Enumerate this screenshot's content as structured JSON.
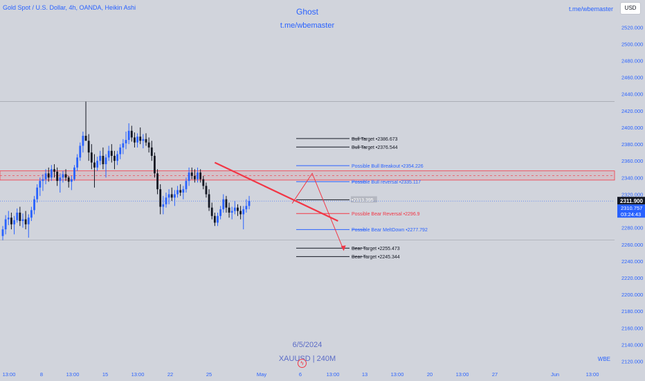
{
  "header": {
    "symbol": "Gold Spot / U.S. Dollar, 4h, OANDA, Heikin Ashi",
    "watermark_title": "Ghost",
    "watermark_sub": "t.me/wbemaster",
    "telegram": "t.me/wbemaster",
    "currency_button": "USD",
    "date_watermark": "6/5/2024",
    "symbol_watermark": "XAUUSD | 240M",
    "corner_tag": "WBE"
  },
  "colors": {
    "background": "#d1d4dc",
    "bull": "#2962ff",
    "bear": "#131722",
    "red": "#f23645",
    "axis_text": "#2962ff"
  },
  "chart_data": {
    "type": "candlestick",
    "ylim": [
      2113,
      2536
    ],
    "y_ticks": [
      2120,
      2140,
      2160,
      2180,
      2200,
      2220,
      2240,
      2260,
      2280,
      2300,
      2320,
      2340,
      2360,
      2380,
      2400,
      2420,
      2440,
      2460,
      2480,
      2500,
      2520
    ],
    "x_ticks": [
      "13:00",
      "8",
      "13:00",
      "15",
      "13:00",
      "22",
      "25",
      "May",
      "6",
      "13:00",
      "13",
      "13:00",
      "20",
      "13:00",
      "27",
      "Jun",
      "13:00"
    ],
    "last_price": "2311.900",
    "last_price_alt": "2310.757",
    "countdown": "03:24:43",
    "current_price": 2311.9,
    "candles": [
      {
        "o": 2270,
        "h": 2282,
        "l": 2265,
        "c": 2278
      },
      {
        "o": 2278,
        "h": 2295,
        "l": 2272,
        "c": 2290
      },
      {
        "o": 2290,
        "h": 2300,
        "l": 2283,
        "c": 2292
      },
      {
        "o": 2292,
        "h": 2298,
        "l": 2278,
        "c": 2284
      },
      {
        "o": 2284,
        "h": 2294,
        "l": 2272,
        "c": 2289
      },
      {
        "o": 2289,
        "h": 2303,
        "l": 2286,
        "c": 2298
      },
      {
        "o": 2298,
        "h": 2305,
        "l": 2282,
        "c": 2288
      },
      {
        "o": 2288,
        "h": 2297,
        "l": 2280,
        "c": 2290
      },
      {
        "o": 2290,
        "h": 2300,
        "l": 2278,
        "c": 2284
      },
      {
        "o": 2284,
        "h": 2296,
        "l": 2268,
        "c": 2292
      },
      {
        "o": 2292,
        "h": 2305,
        "l": 2288,
        "c": 2301
      },
      {
        "o": 2301,
        "h": 2318,
        "l": 2296,
        "c": 2314
      },
      {
        "o": 2314,
        "h": 2332,
        "l": 2310,
        "c": 2328
      },
      {
        "o": 2328,
        "h": 2340,
        "l": 2318,
        "c": 2336
      },
      {
        "o": 2336,
        "h": 2344,
        "l": 2324,
        "c": 2338
      },
      {
        "o": 2338,
        "h": 2350,
        "l": 2332,
        "c": 2345
      },
      {
        "o": 2345,
        "h": 2352,
        "l": 2335,
        "c": 2340
      },
      {
        "o": 2340,
        "h": 2355,
        "l": 2336,
        "c": 2350
      },
      {
        "o": 2350,
        "h": 2356,
        "l": 2340,
        "c": 2347
      },
      {
        "o": 2347,
        "h": 2352,
        "l": 2330,
        "c": 2336
      },
      {
        "o": 2336,
        "h": 2345,
        "l": 2322,
        "c": 2340
      },
      {
        "o": 2340,
        "h": 2348,
        "l": 2334,
        "c": 2344
      },
      {
        "o": 2344,
        "h": 2350,
        "l": 2336,
        "c": 2340
      },
      {
        "o": 2340,
        "h": 2342,
        "l": 2328,
        "c": 2335
      },
      {
        "o": 2335,
        "h": 2342,
        "l": 2325,
        "c": 2338
      },
      {
        "o": 2338,
        "h": 2355,
        "l": 2336,
        "c": 2352
      },
      {
        "o": 2352,
        "h": 2368,
        "l": 2348,
        "c": 2364
      },
      {
        "o": 2364,
        "h": 2382,
        "l": 2360,
        "c": 2378
      },
      {
        "o": 2378,
        "h": 2395,
        "l": 2370,
        "c": 2390
      },
      {
        "o": 2390,
        "h": 2431,
        "l": 2385,
        "c": 2384
      },
      {
        "o": 2384,
        "h": 2392,
        "l": 2360,
        "c": 2370
      },
      {
        "o": 2370,
        "h": 2380,
        "l": 2350,
        "c": 2358
      },
      {
        "o": 2358,
        "h": 2368,
        "l": 2328,
        "c": 2352
      },
      {
        "o": 2352,
        "h": 2365,
        "l": 2348,
        "c": 2360
      },
      {
        "o": 2360,
        "h": 2372,
        "l": 2355,
        "c": 2366
      },
      {
        "o": 2366,
        "h": 2376,
        "l": 2350,
        "c": 2356
      },
      {
        "o": 2356,
        "h": 2368,
        "l": 2340,
        "c": 2364
      },
      {
        "o": 2364,
        "h": 2378,
        "l": 2360,
        "c": 2372
      },
      {
        "o": 2372,
        "h": 2380,
        "l": 2358,
        "c": 2366
      },
      {
        "o": 2366,
        "h": 2372,
        "l": 2350,
        "c": 2360
      },
      {
        "o": 2360,
        "h": 2372,
        "l": 2355,
        "c": 2368
      },
      {
        "o": 2368,
        "h": 2380,
        "l": 2362,
        "c": 2376
      },
      {
        "o": 2376,
        "h": 2386,
        "l": 2368,
        "c": 2381
      },
      {
        "o": 2381,
        "h": 2395,
        "l": 2374,
        "c": 2385
      },
      {
        "o": 2385,
        "h": 2405,
        "l": 2380,
        "c": 2396
      },
      {
        "o": 2396,
        "h": 2402,
        "l": 2383,
        "c": 2388
      },
      {
        "o": 2388,
        "h": 2394,
        "l": 2376,
        "c": 2382
      },
      {
        "o": 2382,
        "h": 2393,
        "l": 2376,
        "c": 2389
      },
      {
        "o": 2389,
        "h": 2400,
        "l": 2380,
        "c": 2384
      },
      {
        "o": 2384,
        "h": 2392,
        "l": 2375,
        "c": 2386
      },
      {
        "o": 2386,
        "h": 2393,
        "l": 2378,
        "c": 2382
      },
      {
        "o": 2382,
        "h": 2388,
        "l": 2370,
        "c": 2376
      },
      {
        "o": 2376,
        "h": 2384,
        "l": 2360,
        "c": 2366
      },
      {
        "o": 2366,
        "h": 2370,
        "l": 2340,
        "c": 2345
      },
      {
        "o": 2345,
        "h": 2350,
        "l": 2320,
        "c": 2326
      },
      {
        "o": 2326,
        "h": 2332,
        "l": 2296,
        "c": 2305
      },
      {
        "o": 2305,
        "h": 2318,
        "l": 2296,
        "c": 2308
      },
      {
        "o": 2308,
        "h": 2322,
        "l": 2304,
        "c": 2316
      },
      {
        "o": 2316,
        "h": 2326,
        "l": 2308,
        "c": 2320
      },
      {
        "o": 2320,
        "h": 2328,
        "l": 2312,
        "c": 2316
      },
      {
        "o": 2316,
        "h": 2325,
        "l": 2306,
        "c": 2320
      },
      {
        "o": 2320,
        "h": 2330,
        "l": 2316,
        "c": 2325
      },
      {
        "o": 2325,
        "h": 2332,
        "l": 2318,
        "c": 2322
      },
      {
        "o": 2322,
        "h": 2330,
        "l": 2314,
        "c": 2326
      },
      {
        "o": 2326,
        "h": 2340,
        "l": 2322,
        "c": 2336
      },
      {
        "o": 2336,
        "h": 2352,
        "l": 2330,
        "c": 2346
      },
      {
        "o": 2346,
        "h": 2352,
        "l": 2338,
        "c": 2342
      },
      {
        "o": 2342,
        "h": 2350,
        "l": 2334,
        "c": 2338
      },
      {
        "o": 2338,
        "h": 2352,
        "l": 2334,
        "c": 2346
      },
      {
        "o": 2346,
        "h": 2350,
        "l": 2334,
        "c": 2338
      },
      {
        "o": 2338,
        "h": 2342,
        "l": 2326,
        "c": 2330
      },
      {
        "o": 2330,
        "h": 2334,
        "l": 2316,
        "c": 2320
      },
      {
        "o": 2320,
        "h": 2326,
        "l": 2300,
        "c": 2304
      },
      {
        "o": 2304,
        "h": 2310,
        "l": 2290,
        "c": 2294
      },
      {
        "o": 2294,
        "h": 2298,
        "l": 2282,
        "c": 2286
      },
      {
        "o": 2286,
        "h": 2298,
        "l": 2282,
        "c": 2294
      },
      {
        "o": 2294,
        "h": 2306,
        "l": 2290,
        "c": 2302
      },
      {
        "o": 2302,
        "h": 2320,
        "l": 2298,
        "c": 2314
      },
      {
        "o": 2314,
        "h": 2318,
        "l": 2298,
        "c": 2304
      },
      {
        "o": 2304,
        "h": 2310,
        "l": 2292,
        "c": 2298
      },
      {
        "o": 2298,
        "h": 2305,
        "l": 2290,
        "c": 2300
      },
      {
        "o": 2300,
        "h": 2312,
        "l": 2296,
        "c": 2304
      },
      {
        "o": 2304,
        "h": 2308,
        "l": 2294,
        "c": 2300
      },
      {
        "o": 2300,
        "h": 2306,
        "l": 2290,
        "c": 2296
      },
      {
        "o": 2296,
        "h": 2306,
        "l": 2278,
        "c": 2302
      },
      {
        "o": 2302,
        "h": 2314,
        "l": 2298,
        "c": 2306
      },
      {
        "o": 2306,
        "h": 2318,
        "l": 2302,
        "c": 2312
      }
    ],
    "levels": [
      {
        "label": "Bull Target •2386.673",
        "value": 2386.673,
        "color": "#131722",
        "label_color": "#131722",
        "strike": true
      },
      {
        "label": "Bull Target •2376.544",
        "value": 2376.544,
        "color": "#131722",
        "label_color": "#131722",
        "strike": true
      },
      {
        "label": "Possible Bull Breakout •2354.226",
        "value": 2354.226,
        "color": "#2962ff",
        "label_color": "#2962ff",
        "strike": false
      },
      {
        "label": "Possible Bull reversal •2335.117",
        "value": 2335.117,
        "color": "#2962ff",
        "label_color": "#2962ff",
        "strike": true
      },
      {
        "label": "•2313.395",
        "value": 2313.395,
        "color": "#131722",
        "label_color": "#ffffff",
        "strike": false
      },
      {
        "label": "Possible Bear Reversal •2296.9",
        "value": 2296.9,
        "color": "#f23645",
        "label_color": "#f23645",
        "strike": false
      },
      {
        "label": "Possible Bear MeltDown •2277.792",
        "value": 2277.792,
        "color": "#2962ff",
        "label_color": "#2962ff",
        "strike": true
      },
      {
        "label": "Bear Target •2255.473",
        "value": 2255.473,
        "color": "#131722",
        "label_color": "#131722",
        "strike": true
      },
      {
        "label": "Bear Target •2245.344",
        "value": 2245.344,
        "color": "#131722",
        "label_color": "#131722",
        "strike": true
      }
    ],
    "zone": {
      "top": 2348,
      "bottom": 2337
    },
    "trendline": {
      "from": {
        "bar": 74,
        "value": 2358
      },
      "to": {
        "bar": 117,
        "value": 2288
      }
    },
    "projection": [
      {
        "bar": 101,
        "value": 2309
      },
      {
        "bar": 108,
        "value": 2345
      },
      {
        "bar": 119,
        "value": 2253
      }
    ]
  }
}
